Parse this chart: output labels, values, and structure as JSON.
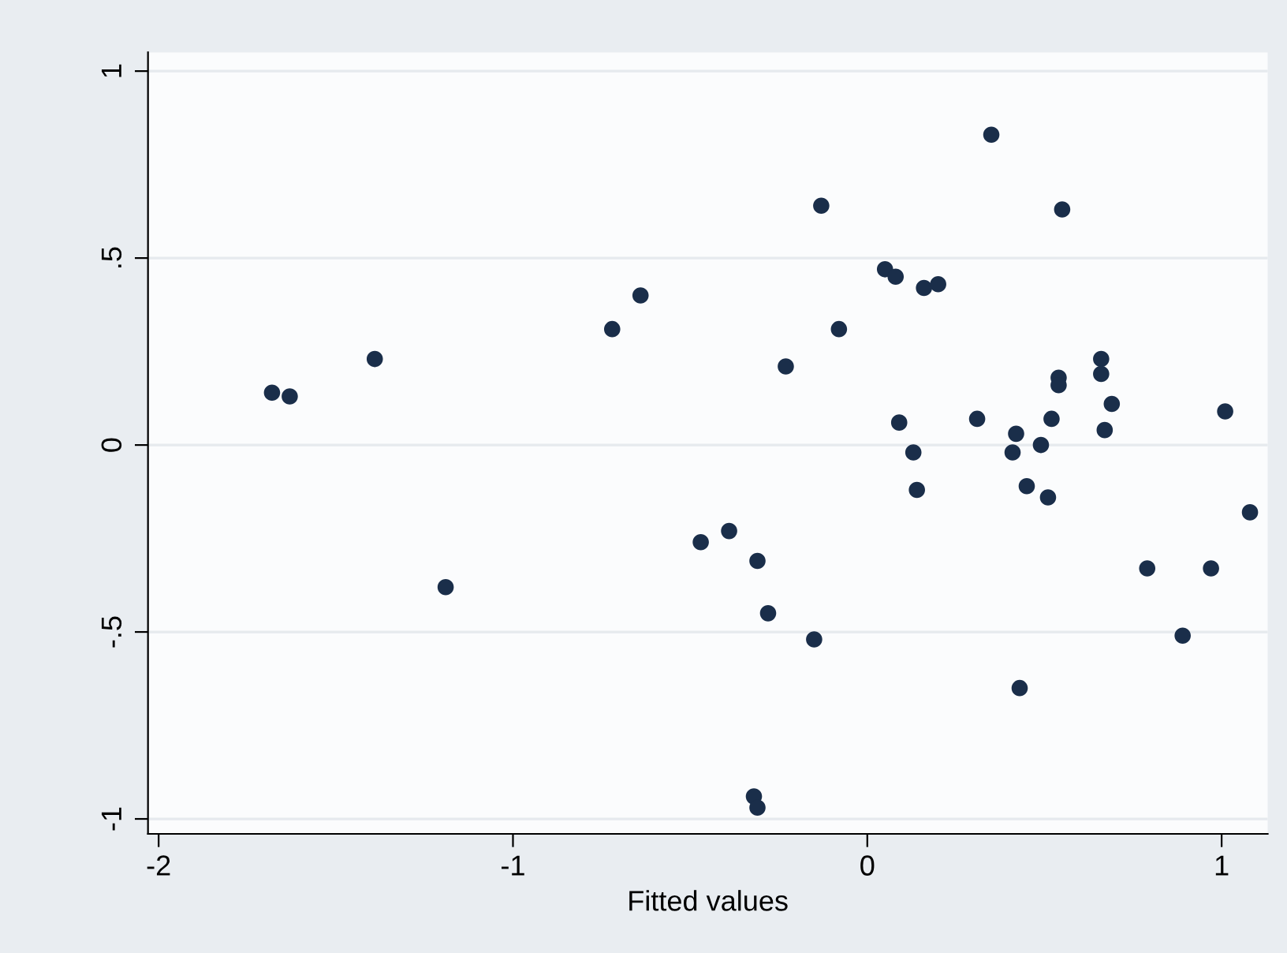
{
  "chart_data": {
    "type": "scatter",
    "xlabel": "Fitted values",
    "x": [
      -1.68,
      -1.63,
      -1.39,
      -1.19,
      -0.72,
      -0.64,
      -0.47,
      -0.39,
      -0.31,
      -0.28,
      -0.32,
      -0.31,
      -0.23,
      -0.15,
      -0.13,
      -0.08,
      0.05,
      0.08,
      0.16,
      0.2,
      0.35,
      0.55,
      0.09,
      0.13,
      0.14,
      0.31,
      0.42,
      0.41,
      0.45,
      0.49,
      0.51,
      0.52,
      0.54,
      0.54,
      0.66,
      0.66,
      0.69,
      0.67,
      1.01,
      1.08,
      0.79,
      0.97,
      0.89,
      0.43
    ],
    "values": [
      0.14,
      0.13,
      0.23,
      -0.38,
      0.31,
      0.4,
      -0.26,
      -0.23,
      -0.31,
      -0.45,
      -0.94,
      -0.97,
      0.21,
      -0.52,
      0.64,
      0.31,
      0.47,
      0.45,
      0.42,
      0.43,
      0.83,
      0.63,
      0.06,
      -0.02,
      -0.12,
      0.07,
      0.03,
      -0.02,
      -0.11,
      0.0,
      -0.14,
      0.07,
      0.18,
      0.16,
      0.23,
      0.19,
      0.11,
      0.04,
      0.09,
      -0.18,
      -0.33,
      -0.33,
      -0.51,
      -0.65
    ],
    "color": "#1a2e4a",
    "marker": "circle",
    "xlim": [
      -2.03,
      1.13
    ],
    "ylim": [
      -1.04,
      1.05
    ],
    "xticks": [
      -2,
      -1,
      0,
      1
    ],
    "yticks": [
      -1,
      {
        "value": -0.5,
        "label": "-.5"
      },
      0,
      {
        "value": 0.5,
        "label": ".5"
      },
      1
    ],
    "grid": "y"
  }
}
